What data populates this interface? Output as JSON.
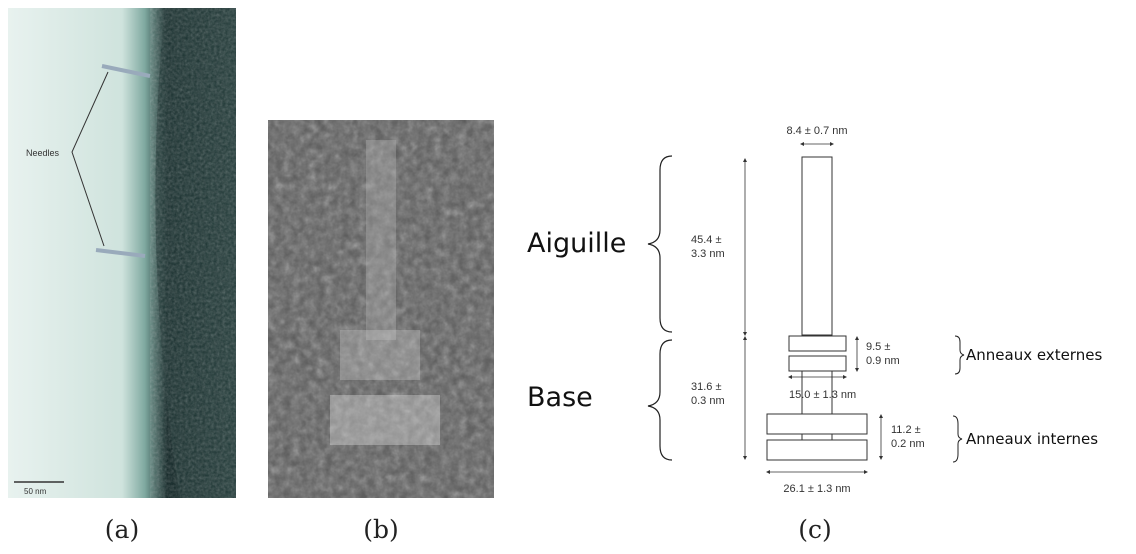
{
  "panel_a": {
    "label": "Needles",
    "scale": "50 nm",
    "caption": "(a)"
  },
  "panel_b": {
    "caption": "(b)"
  },
  "panel_c": {
    "caption": "(c)",
    "needle_width": "8.4 ± 0.7 nm",
    "needle_length": [
      "45.4 ±",
      "3.3 nm"
    ],
    "needle_name": "Aiguille",
    "base_name": "Base",
    "base_length": [
      "31.6 ±",
      "0.3 nm"
    ],
    "outer_ring_height": [
      "9.5 ±",
      "0.9 nm"
    ],
    "outer_ring_width": "15.0 ± 1.3 nm",
    "outer_rings_name": "Anneaux externes",
    "inner_ring_height": [
      "11.2 ±",
      "0.2 nm"
    ],
    "inner_ring_width": "26.1 ± 1.3 nm",
    "inner_rings_name": "Anneaux internes"
  }
}
